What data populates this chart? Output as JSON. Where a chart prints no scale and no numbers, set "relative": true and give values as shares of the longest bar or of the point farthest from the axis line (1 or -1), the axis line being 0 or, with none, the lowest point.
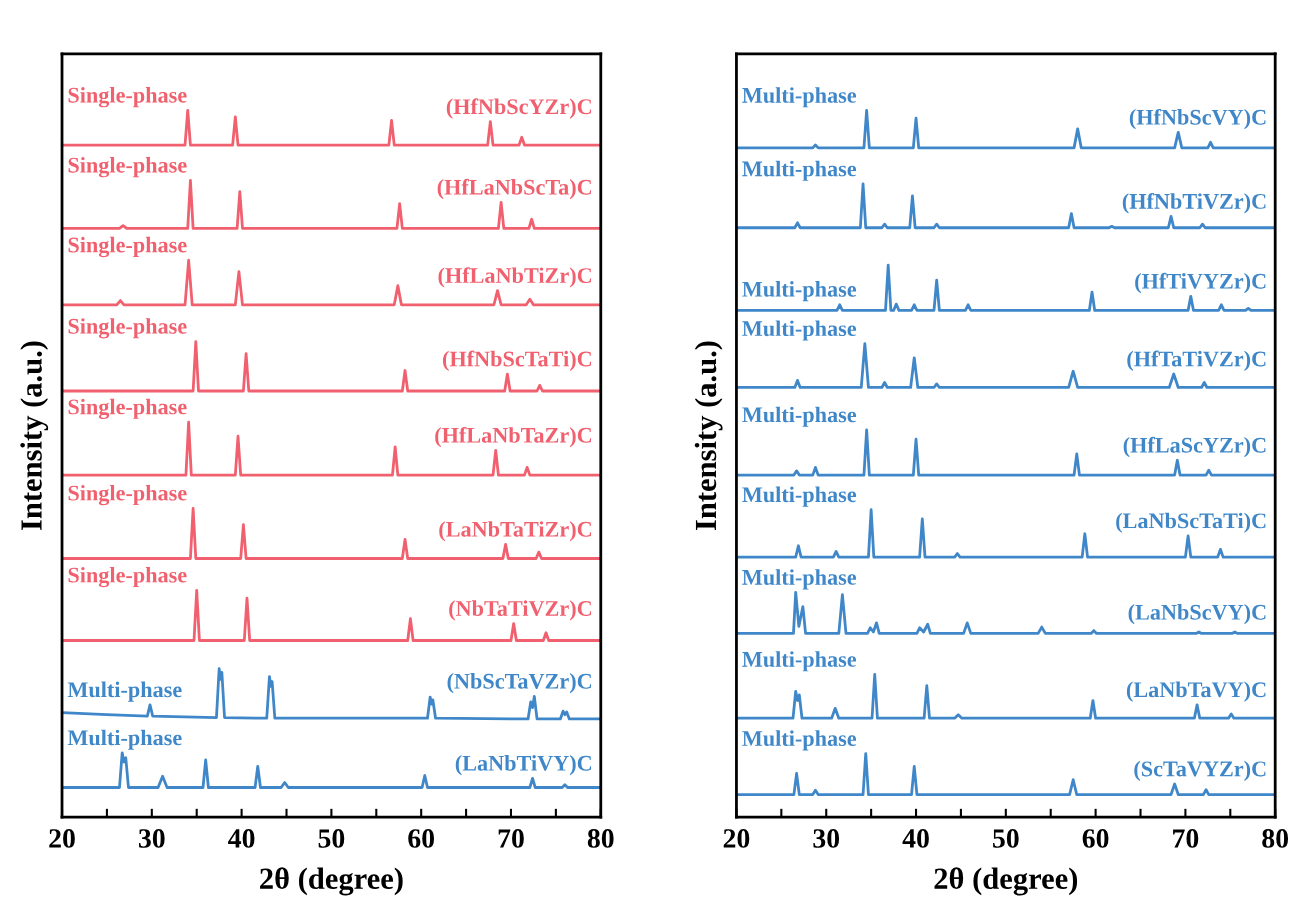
{
  "chart_data": [
    {
      "type": "line",
      "relative": true,
      "xlabel": "2θ (degree)",
      "ylabel": "Intensity (a.u.)",
      "xlim": [
        20,
        80
      ],
      "xticks": [
        20,
        {
          "value": 25,
          "label": null
        },
        30,
        {
          "value": 35,
          "label": null
        },
        40,
        {
          "value": 45,
          "label": null
        },
        50,
        {
          "value": 55,
          "label": null
        },
        60,
        {
          "value": 65,
          "label": null
        },
        70,
        {
          "value": 75,
          "label": null
        },
        80
      ],
      "annotations": [
        "Single-phase",
        "Single-phase",
        "Single-phase",
        "Single-phase",
        "Single-phase",
        "Single-phase",
        "Single-phase",
        "Multi-phase",
        "Multi-phase"
      ],
      "series": [
        {
          "name": "(HfNbScYZr)C",
          "color": "#f0606e",
          "x": [
            20,
            33.7,
            34.0,
            34.3,
            39.0,
            39.3,
            39.6,
            56.4,
            56.7,
            57.0,
            67.4,
            67.7,
            68.0,
            70.9,
            71.2,
            71.5,
            80
          ],
          "values": [
            0.951,
            0.951,
            1.0,
            0.951,
            0.951,
            0.991,
            0.951,
            0.951,
            0.986,
            0.951,
            0.951,
            0.984,
            0.951,
            0.951,
            0.962,
            0.951,
            0.951
          ]
        },
        {
          "name": "(HfLaNbScTa)C",
          "color": "#f0606e",
          "x": [
            20,
            26.4,
            26.8,
            27.2,
            34.0,
            34.3,
            34.6,
            39.5,
            39.8,
            40.1,
            57.3,
            57.6,
            57.9,
            68.6,
            68.9,
            69.2,
            72.0,
            72.3,
            72.6,
            80
          ],
          "values": [
            0.833,
            0.833,
            0.837,
            0.833,
            0.833,
            0.901,
            0.833,
            0.833,
            0.885,
            0.833,
            0.833,
            0.868,
            0.833,
            0.833,
            0.87,
            0.833,
            0.833,
            0.846,
            0.833,
            0.833
          ]
        },
        {
          "name": "(HfLaNbTiZr)C",
          "color": "#f0606e",
          "x": [
            20,
            26.1,
            26.5,
            26.9,
            33.7,
            34.1,
            34.5,
            39.3,
            39.7,
            40.1,
            57.0,
            57.4,
            57.8,
            68.1,
            68.5,
            68.9,
            71.7,
            72.1,
            72.5,
            80
          ],
          "values": [
            0.725,
            0.725,
            0.731,
            0.725,
            0.725,
            0.788,
            0.725,
            0.725,
            0.772,
            0.725,
            0.725,
            0.752,
            0.725,
            0.725,
            0.745,
            0.725,
            0.725,
            0.733,
            0.725,
            0.725
          ]
        },
        {
          "name": "(HfNbScTaTi)C",
          "color": "#f0606e",
          "x": [
            20,
            34.6,
            34.9,
            35.2,
            40.2,
            40.5,
            40.8,
            57.9,
            58.2,
            58.5,
            69.3,
            69.6,
            69.9,
            72.9,
            73.2,
            73.5,
            80
          ],
          "values": [
            0.603,
            0.603,
            0.673,
            0.603,
            0.603,
            0.656,
            0.603,
            0.603,
            0.632,
            0.603,
            0.603,
            0.627,
            0.603,
            0.603,
            0.611,
            0.603,
            0.603
          ]
        },
        {
          "name": "(HfLaNbTaZr)C",
          "color": "#f0606e",
          "x": [
            20,
            33.8,
            34.1,
            34.4,
            39.3,
            39.6,
            39.9,
            56.8,
            57.1,
            57.4,
            68.0,
            68.3,
            68.6,
            71.5,
            71.8,
            72.1,
            80
          ],
          "values": [
            0.484,
            0.484,
            0.559,
            0.484,
            0.484,
            0.539,
            0.484,
            0.484,
            0.524,
            0.484,
            0.484,
            0.519,
            0.484,
            0.484,
            0.495,
            0.484,
            0.484
          ]
        },
        {
          "name": "(LaNbTaTiZr)C",
          "color": "#f0606e",
          "x": [
            20,
            34.3,
            34.6,
            34.9,
            39.9,
            40.2,
            40.5,
            57.9,
            58.2,
            58.5,
            69.1,
            69.4,
            69.7,
            72.8,
            73.1,
            73.4,
            80
          ],
          "values": [
            0.366,
            0.366,
            0.437,
            0.366,
            0.366,
            0.414,
            0.366,
            0.366,
            0.393,
            0.366,
            0.366,
            0.386,
            0.366,
            0.366,
            0.375,
            0.366,
            0.366
          ]
        },
        {
          "name": "(NbTaTiVZr)C",
          "color": "#f0606e",
          "x": [
            20,
            34.7,
            35.0,
            35.3,
            40.3,
            40.6,
            40.9,
            58.5,
            58.8,
            59.1,
            70.0,
            70.3,
            70.6,
            73.6,
            73.9,
            74.2,
            80
          ],
          "values": [
            0.25,
            0.25,
            0.321,
            0.25,
            0.25,
            0.31,
            0.25,
            0.25,
            0.281,
            0.25,
            0.25,
            0.274,
            0.25,
            0.25,
            0.261,
            0.25,
            0.25
          ]
        },
        {
          "name": "(NbScTaVZr)C",
          "color": "#3f87c8",
          "x": [
            20,
            25,
            29.5,
            29.8,
            30.1,
            37.2,
            37.5,
            37.65,
            37.8,
            38.1,
            42.8,
            43.1,
            43.25,
            43.4,
            43.7,
            60.7,
            61.0,
            61.15,
            61.3,
            61.6,
            71.9,
            72.2,
            72.4,
            72.6,
            72.9,
            75.5,
            75.8,
            76.0,
            76.2,
            76.5,
            80
          ],
          "values": [
            0.148,
            0.145,
            0.143,
            0.159,
            0.143,
            0.141,
            0.21,
            0.195,
            0.205,
            0.141,
            0.14,
            0.199,
            0.185,
            0.192,
            0.14,
            0.14,
            0.17,
            0.16,
            0.166,
            0.14,
            0.139,
            0.163,
            0.155,
            0.171,
            0.139,
            0.139,
            0.15,
            0.145,
            0.149,
            0.139,
            0.139
          ]
        },
        {
          "name": "(LaNbTiVY)C",
          "color": "#3f87c8",
          "x": [
            20,
            26.4,
            26.7,
            26.9,
            27.1,
            27.4,
            30.7,
            31.2,
            31.7,
            35.7,
            36.0,
            36.3,
            41.5,
            41.8,
            42.1,
            44.4,
            44.8,
            45.2,
            60.1,
            60.4,
            60.7,
            72.1,
            72.4,
            72.7,
            75.7,
            76.0,
            76.3,
            80
          ],
          "values": [
            0.042,
            0.042,
            0.091,
            0.078,
            0.084,
            0.042,
            0.042,
            0.058,
            0.042,
            0.042,
            0.081,
            0.042,
            0.042,
            0.072,
            0.042,
            0.042,
            0.049,
            0.042,
            0.042,
            0.059,
            0.042,
            0.042,
            0.055,
            0.042,
            0.042,
            0.046,
            0.042,
            0.042
          ]
        }
      ]
    },
    {
      "type": "line",
      "relative": true,
      "xlabel": "2θ (degree)",
      "ylabel": "Intensity (a.u.)",
      "xlim": [
        20,
        80
      ],
      "xticks": [
        20,
        {
          "value": 25,
          "label": null
        },
        30,
        {
          "value": 35,
          "label": null
        },
        40,
        {
          "value": 45,
          "label": null
        },
        50,
        {
          "value": 55,
          "label": null
        },
        60,
        {
          "value": 65,
          "label": null
        },
        70,
        {
          "value": 75,
          "label": null
        },
        80
      ],
      "annotations": [
        "Multi-phase",
        "Multi-phase",
        "Multi-phase",
        "Multi-phase",
        "Multi-phase",
        "Multi-phase",
        "Multi-phase",
        "Multi-phase",
        "Multi-phase"
      ],
      "series": [
        {
          "name": "(HfNbScVY)C",
          "color": "#3f87c8",
          "x": [
            20,
            28.5,
            28.8,
            29.1,
            34.2,
            34.5,
            34.8,
            39.7,
            40.0,
            40.3,
            57.6,
            58.0,
            58.4,
            68.8,
            69.2,
            69.6,
            72.5,
            72.8,
            73.1,
            80
          ],
          "values": [
            0.947,
            0.947,
            0.951,
            0.947,
            0.947,
            1.0,
            0.947,
            0.947,
            0.989,
            0.947,
            0.947,
            0.974,
            0.947,
            0.947,
            0.969,
            0.947,
            0.947,
            0.955,
            0.947,
            0.947
          ]
        },
        {
          "name": "(HfNbTiVZr)C",
          "color": "#3f87c8",
          "x": [
            20,
            26.5,
            26.8,
            27.1,
            33.8,
            34.1,
            34.4,
            36.2,
            36.5,
            36.8,
            39.3,
            39.6,
            39.9,
            42.0,
            42.3,
            42.6,
            57.0,
            57.3,
            57.6,
            61.5,
            61.8,
            62.1,
            68.1,
            68.4,
            68.7,
            71.6,
            71.9,
            72.2,
            80
          ],
          "values": [
            0.834,
            0.834,
            0.841,
            0.834,
            0.834,
            0.896,
            0.834,
            0.834,
            0.839,
            0.834,
            0.834,
            0.879,
            0.834,
            0.834,
            0.839,
            0.834,
            0.834,
            0.854,
            0.834,
            0.834,
            0.836,
            0.834,
            0.834,
            0.85,
            0.834,
            0.834,
            0.839,
            0.834,
            0.834
          ]
        },
        {
          "name": "(HfTiVYZr)C",
          "color": "#3f87c8",
          "x": [
            20,
            31.2,
            31.5,
            31.8,
            36.6,
            36.9,
            37.2,
            37.5,
            37.8,
            38.1,
            39.5,
            39.8,
            40.1,
            42.0,
            42.3,
            42.6,
            45.5,
            45.8,
            46.1,
            59.3,
            59.6,
            59.9,
            70.3,
            70.6,
            70.9,
            73.7,
            74.0,
            74.3,
            76.7,
            77.0,
            77.3,
            80
          ],
          "values": [
            0.717,
            0.717,
            0.725,
            0.717,
            0.717,
            0.781,
            0.717,
            0.717,
            0.726,
            0.717,
            0.717,
            0.725,
            0.717,
            0.717,
            0.76,
            0.717,
            0.717,
            0.725,
            0.717,
            0.717,
            0.743,
            0.717,
            0.717,
            0.737,
            0.717,
            0.717,
            0.725,
            0.717,
            0.717,
            0.72,
            0.717,
            0.717
          ]
        },
        {
          "name": "(HfTaTiVZr)C",
          "color": "#3f87c8",
          "x": [
            20,
            26.5,
            26.8,
            27.1,
            33.9,
            34.3,
            34.7,
            36.2,
            36.5,
            36.8,
            39.4,
            39.8,
            40.2,
            42.0,
            42.3,
            42.6,
            57.0,
            57.5,
            58.0,
            68.2,
            68.7,
            69.2,
            71.8,
            72.1,
            72.4,
            80
          ],
          "values": [
            0.608,
            0.608,
            0.618,
            0.608,
            0.608,
            0.67,
            0.608,
            0.608,
            0.615,
            0.608,
            0.608,
            0.65,
            0.608,
            0.608,
            0.613,
            0.608,
            0.608,
            0.631,
            0.608,
            0.608,
            0.627,
            0.608,
            0.608,
            0.615,
            0.608,
            0.608
          ]
        },
        {
          "name": "(HfLaScYZr)C",
          "color": "#3f87c8",
          "x": [
            20,
            26.4,
            26.7,
            27.0,
            28.5,
            28.8,
            29.1,
            34.2,
            34.5,
            34.8,
            39.7,
            40.0,
            40.3,
            57.6,
            57.9,
            58.2,
            68.8,
            69.1,
            69.4,
            72.3,
            72.6,
            72.9,
            80
          ],
          "values": [
            0.484,
            0.484,
            0.49,
            0.484,
            0.484,
            0.495,
            0.484,
            0.484,
            0.548,
            0.484,
            0.484,
            0.535,
            0.484,
            0.484,
            0.514,
            0.484,
            0.484,
            0.505,
            0.484,
            0.484,
            0.491,
            0.484,
            0.484
          ]
        },
        {
          "name": "(LaNbScTaTi)C",
          "color": "#3f87c8",
          "x": [
            20,
            26.6,
            26.9,
            27.2,
            30.8,
            31.1,
            31.4,
            34.7,
            35.0,
            35.3,
            40.4,
            40.7,
            41.0,
            44.3,
            44.6,
            44.9,
            58.5,
            58.8,
            59.1,
            70.0,
            70.3,
            70.6,
            73.6,
            73.9,
            74.2,
            80
          ],
          "values": [
            0.368,
            0.368,
            0.384,
            0.368,
            0.368,
            0.376,
            0.368,
            0.368,
            0.435,
            0.368,
            0.368,
            0.422,
            0.368,
            0.368,
            0.373,
            0.368,
            0.368,
            0.401,
            0.368,
            0.368,
            0.398,
            0.368,
            0.368,
            0.379,
            0.368,
            0.368
          ]
        },
        {
          "name": "(LaNbScVY)C",
          "color": "#3f87c8",
          "x": [
            20,
            26.35,
            26.6,
            26.95,
            27.4,
            27.7,
            31.4,
            31.8,
            32.2,
            34.6,
            34.9,
            35.25,
            35.6,
            35.9,
            40.1,
            40.4,
            40.85,
            41.3,
            41.6,
            45.3,
            45.7,
            46.1,
            53.6,
            54.0,
            54.4,
            59.5,
            59.8,
            60.1,
            71.2,
            71.5,
            71.8,
            75.2,
            75.5,
            75.8,
            80
          ],
          "values": [
            0.26,
            0.26,
            0.318,
            0.27,
            0.298,
            0.26,
            0.26,
            0.315,
            0.26,
            0.26,
            0.268,
            0.262,
            0.275,
            0.26,
            0.26,
            0.268,
            0.262,
            0.273,
            0.26,
            0.26,
            0.275,
            0.26,
            0.26,
            0.269,
            0.26,
            0.26,
            0.264,
            0.26,
            0.26,
            0.262,
            0.26,
            0.26,
            0.262,
            0.26,
            0.26
          ]
        },
        {
          "name": "(LaNbTaVY)C",
          "color": "#3f87c8",
          "x": [
            20,
            26.3,
            26.6,
            26.8,
            27.0,
            27.3,
            30.6,
            31.0,
            31.4,
            35.1,
            35.4,
            35.7,
            40.9,
            41.2,
            41.5,
            44.3,
            44.7,
            45.1,
            59.4,
            59.7,
            60.0,
            71.0,
            71.3,
            71.6,
            74.8,
            75.1,
            75.4,
            80
          ],
          "values": [
            0.14,
            0.14,
            0.178,
            0.165,
            0.173,
            0.14,
            0.14,
            0.154,
            0.14,
            0.14,
            0.202,
            0.14,
            0.14,
            0.186,
            0.14,
            0.14,
            0.145,
            0.14,
            0.14,
            0.165,
            0.14,
            0.14,
            0.159,
            0.14,
            0.14,
            0.146,
            0.14,
            0.14
          ]
        },
        {
          "name": "(ScTaVYZr)C",
          "color": "#3f87c8",
          "x": [
            20,
            26.4,
            26.7,
            27.0,
            28.5,
            28.8,
            29.1,
            34.1,
            34.4,
            34.7,
            39.5,
            39.8,
            40.1,
            57.1,
            57.5,
            57.9,
            68.4,
            68.8,
            69.2,
            72.0,
            72.3,
            72.6,
            80
          ],
          "values": [
            0.032,
            0.032,
            0.062,
            0.032,
            0.032,
            0.038,
            0.032,
            0.032,
            0.09,
            0.032,
            0.032,
            0.072,
            0.032,
            0.032,
            0.053,
            0.032,
            0.032,
            0.047,
            0.032,
            0.032,
            0.039,
            0.032,
            0.032
          ]
        }
      ]
    }
  ]
}
